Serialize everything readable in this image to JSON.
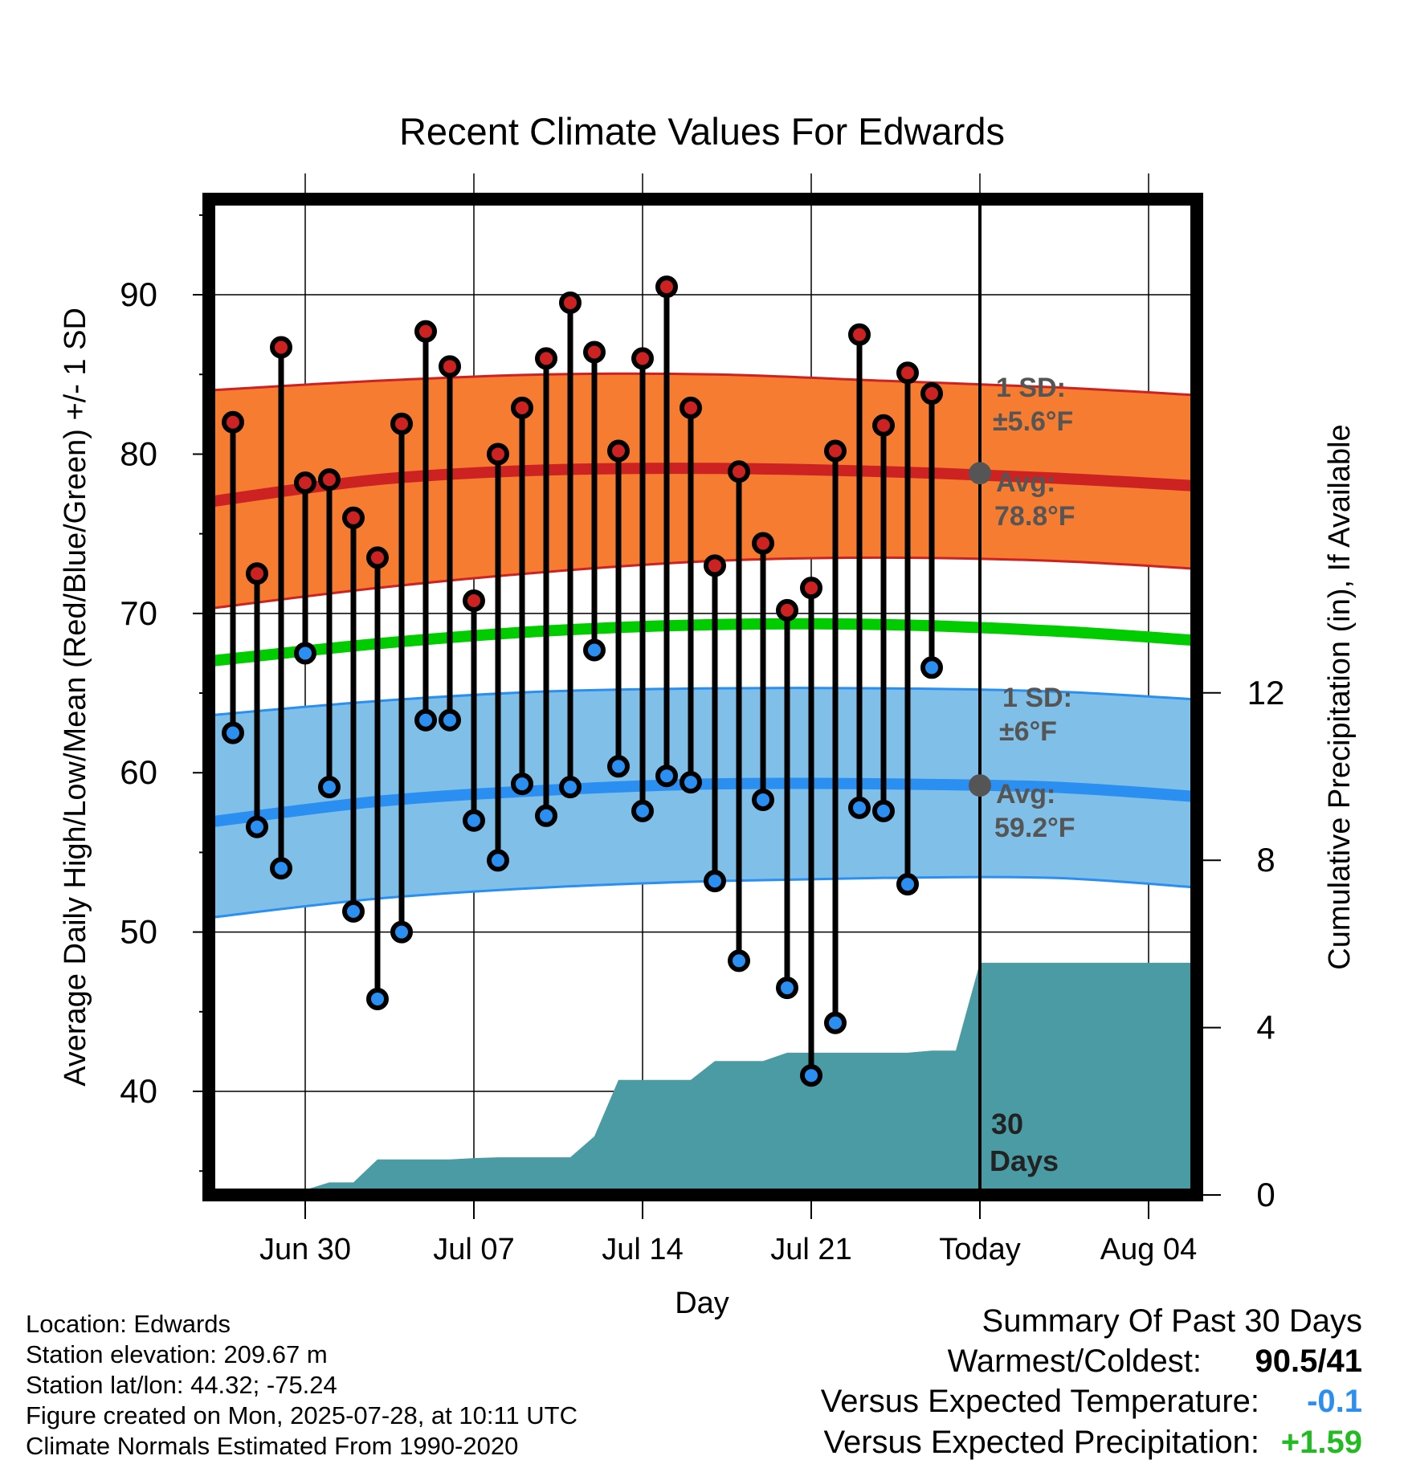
{
  "chart_data": {
    "type": "line",
    "title": "Recent Climate Values For Edwards",
    "xlabel": "Day",
    "ylabel_left": "Average Daily High/Low/Mean (Red/Blue/Green) +/- 1 SD",
    "ylabel_right": "Cumulative Precipitation (in), If Available",
    "x_range": [
      "2025-06-26",
      "2025-08-06"
    ],
    "ylim_left": [
      33.5,
      96
    ],
    "ylim_right": [
      0,
      23.8
    ],
    "grid": true,
    "x_ticks": [
      {
        "date": "2025-06-30",
        "label": "Jun 30"
      },
      {
        "date": "2025-07-07",
        "label": "Jul 07"
      },
      {
        "date": "2025-07-14",
        "label": "Jul 14"
      },
      {
        "date": "2025-07-21",
        "label": "Jul 21"
      },
      {
        "date": "2025-07-28",
        "label": "Today"
      },
      {
        "date": "2025-08-04",
        "label": "Aug 04"
      }
    ],
    "y_ticks_left": [
      40,
      50,
      60,
      70,
      80,
      90
    ],
    "y_ticks_right": [
      0,
      4,
      8,
      12
    ],
    "today": "2025-07-28",
    "window_label": [
      "30",
      "Days"
    ],
    "colors": {
      "high": "#cc2222",
      "low": "#2a8ff0",
      "mean": "#00cc00",
      "high_band": "#f57c30",
      "low_band": "#80c0e8",
      "precip": "#4a9ba4"
    },
    "high_normal": {
      "x": [
        "2025-06-26",
        "2025-07-03",
        "2025-07-10",
        "2025-07-17",
        "2025-07-24",
        "2025-07-31",
        "2025-08-06"
      ],
      "mean": [
        77.0,
        78.4,
        79.0,
        79.1,
        78.9,
        78.5,
        78.0
      ],
      "upper": [
        84.0,
        84.6,
        85.0,
        85.0,
        84.6,
        84.2,
        83.7
      ],
      "lower": [
        70.3,
        71.6,
        72.6,
        73.3,
        73.5,
        73.3,
        72.8
      ]
    },
    "low_normal": {
      "x": [
        "2025-06-26",
        "2025-07-03",
        "2025-07-10",
        "2025-07-17",
        "2025-07-24",
        "2025-07-31",
        "2025-08-06"
      ],
      "mean": [
        56.9,
        58.2,
        58.9,
        59.3,
        59.3,
        59.1,
        58.5
      ],
      "upper": [
        63.6,
        64.5,
        65.1,
        65.3,
        65.3,
        65.1,
        64.6
      ],
      "lower": [
        50.9,
        52.1,
        52.8,
        53.2,
        53.4,
        53.4,
        52.8
      ]
    },
    "mean_normal": {
      "x": [
        "2025-06-26",
        "2025-07-03",
        "2025-07-10",
        "2025-07-17",
        "2025-07-24",
        "2025-07-31",
        "2025-08-06"
      ],
      "values": [
        67.0,
        68.1,
        68.9,
        69.3,
        69.3,
        68.9,
        68.3
      ]
    },
    "daily": {
      "dates": [
        "2025-06-27",
        "2025-06-28",
        "2025-06-29",
        "2025-06-30",
        "2025-07-01",
        "2025-07-02",
        "2025-07-03",
        "2025-07-04",
        "2025-07-05",
        "2025-07-06",
        "2025-07-07",
        "2025-07-08",
        "2025-07-09",
        "2025-07-10",
        "2025-07-11",
        "2025-07-12",
        "2025-07-13",
        "2025-07-14",
        "2025-07-15",
        "2025-07-16",
        "2025-07-17",
        "2025-07-18",
        "2025-07-19",
        "2025-07-20",
        "2025-07-21",
        "2025-07-22",
        "2025-07-23",
        "2025-07-24",
        "2025-07-25",
        "2025-07-26",
        "2025-07-27"
      ],
      "highs": [
        82.0,
        72.5,
        86.7,
        78.2,
        78.4,
        76.0,
        73.5,
        81.9,
        87.7,
        85.5,
        70.8,
        80.0,
        82.9,
        86.0,
        89.5,
        86.4,
        80.2,
        86.0,
        90.5,
        82.9,
        73.0,
        78.9,
        74.4,
        70.2,
        71.6,
        80.2,
        87.5,
        81.8,
        85.1,
        83.8,
        null
      ],
      "lows": [
        62.5,
        56.6,
        54.0,
        67.5,
        59.1,
        51.3,
        45.8,
        50.0,
        63.3,
        63.3,
        57.0,
        54.5,
        59.3,
        57.3,
        59.1,
        67.7,
        60.4,
        57.6,
        59.8,
        59.4,
        53.2,
        48.2,
        58.3,
        46.5,
        41.0,
        44.3,
        57.8,
        57.6,
        53.0,
        66.6,
        null
      ]
    },
    "precip": {
      "x": [
        "2025-06-26",
        "2025-06-29",
        "2025-06-30",
        "2025-07-01",
        "2025-07-02",
        "2025-07-03",
        "2025-07-04",
        "2025-07-05",
        "2025-07-06",
        "2025-07-07",
        "2025-07-08",
        "2025-07-09",
        "2025-07-10",
        "2025-07-11",
        "2025-07-12",
        "2025-07-13",
        "2025-07-14",
        "2025-07-15",
        "2025-07-16",
        "2025-07-17",
        "2025-07-18",
        "2025-07-19",
        "2025-07-20",
        "2025-07-21",
        "2025-07-22",
        "2025-07-23",
        "2025-07-24",
        "2025-07-25",
        "2025-07-26",
        "2025-07-27",
        "2025-07-28",
        "2025-08-06"
      ],
      "values": [
        0.0,
        0.0,
        0.12,
        0.3,
        0.3,
        0.85,
        0.85,
        0.85,
        0.85,
        0.88,
        0.9,
        0.9,
        0.9,
        0.9,
        1.4,
        2.75,
        2.75,
        2.75,
        2.75,
        3.2,
        3.2,
        3.2,
        3.4,
        3.4,
        3.4,
        3.4,
        3.4,
        3.4,
        3.45,
        3.45,
        5.55,
        5.55
      ]
    },
    "annotations": {
      "high": {
        "sd_label": "1 SD:",
        "sd_value": "±5.6°F",
        "avg_label": "Avg:",
        "avg_value": "78.8°F",
        "marker_value": 78.8
      },
      "low": {
        "sd_label": "1 SD:",
        "sd_value": "±6°F",
        "avg_label": "Avg:",
        "avg_value": "59.2°F",
        "marker_value": 59.2
      }
    }
  },
  "info": {
    "location": "Location: Edwards",
    "elevation": "Station elevation: 209.67 m",
    "latlon": "Station lat/lon: 44.32; -75.24",
    "created": "Figure created on Mon, 2025-07-28, at 10:11 UTC",
    "normals": "Climate Normals Estimated From 1990-2020"
  },
  "summary": {
    "title": "Summary Of Past 30 Days",
    "warmest_label": "Warmest/Coldest:",
    "warmest_value": "90.5/41",
    "temp_label": "Versus Expected Temperature:",
    "temp_value": "-0.1",
    "temp_color": "#2a8ff0",
    "precip_label": "Versus Expected Precipitation:",
    "precip_value": "+1.59",
    "precip_color": "#22bb22"
  }
}
